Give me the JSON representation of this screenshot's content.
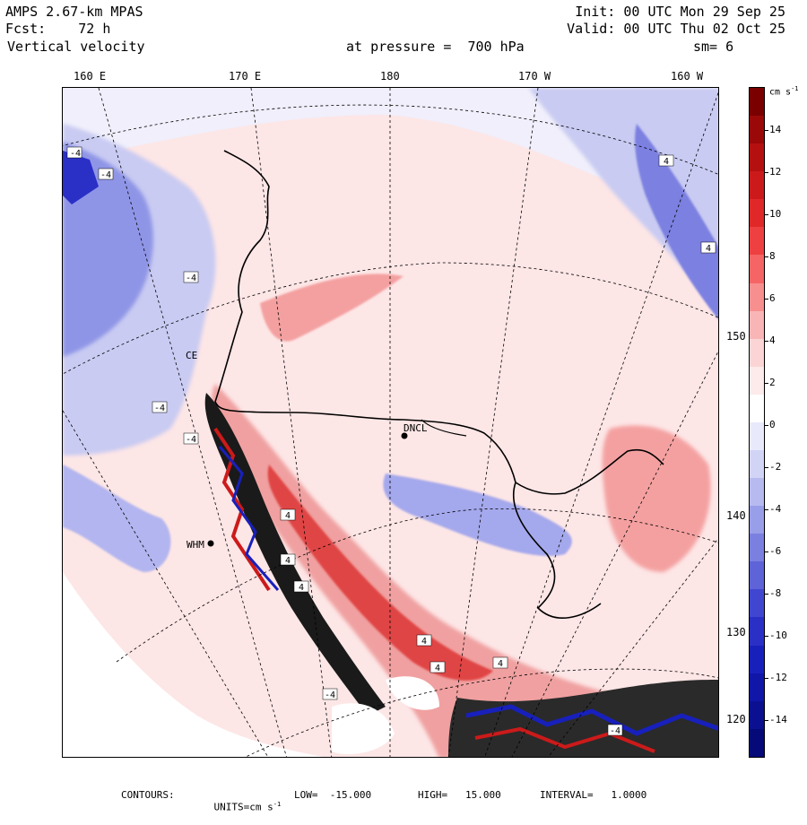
{
  "header": {
    "model": "AMPS 2.67-km MPAS",
    "forecast": "Fcst:    72 h",
    "field": "Vertical velocity",
    "init": "Init: 00 UTC Mon 29 Sep 25",
    "valid": "Valid: 00 UTC Thu 02 Oct 25",
    "level": "at pressure =  700 hPa",
    "smooth": "sm= 6"
  },
  "longitude_labels": [
    "160 E",
    "170 E",
    "180",
    "170 W",
    "160 W"
  ],
  "latitude_labels": [
    "150 W",
    "140 W",
    "130 W",
    "120 W"
  ],
  "colorbar": {
    "unit": "cm s",
    "unit_exp": "-1",
    "labels": [
      "14",
      "12",
      "10",
      "8",
      "6",
      "4",
      "2",
      "0",
      "-2",
      "-4",
      "-6",
      "-8",
      "-10",
      "-12",
      "-14"
    ],
    "colors": [
      "#7a0000",
      "#9a0808",
      "#b51010",
      "#cc1a1a",
      "#e02828",
      "#ee4040",
      "#f56565",
      "#f78f8f",
      "#f9b5b5",
      "#fbd5d5",
      "#fdeaea",
      "#ffffff",
      "#e8e9fb",
      "#d2d4f5",
      "#b7baef",
      "#999ee8",
      "#7b80e0",
      "#5e63d8",
      "#4146d0",
      "#2a30c6",
      "#1820bc",
      "#0f16a8",
      "#0a1090",
      "#050a78"
    ]
  },
  "stations": [
    "DNCL",
    "WHM",
    "CE"
  ],
  "contour_labels": [
    "4",
    "-4"
  ],
  "footer": {
    "contours": "CONTOURS:",
    "units_pre": "UNITS=cm s",
    "units_exp": "-1",
    "low": "LOW=  -15.000",
    "high": "HIGH=   15.000",
    "interval": "INTERVAL=   1.0000"
  },
  "map_colors": {
    "land_bg": "#fde8e8",
    "ocean_bg": "#eceefa",
    "blue_mid": "#8f95e6",
    "blue_dark": "#2a30c6",
    "red_mid": "#f08a8a",
    "red_dark": "#b51010",
    "black": "#000000"
  }
}
